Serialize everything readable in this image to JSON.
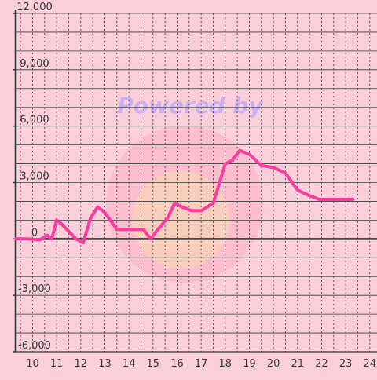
{
  "chart_data": {
    "type": "line",
    "title": "",
    "xlabel": "",
    "ylabel": "",
    "xlim": [
      9.3,
      24.3
    ],
    "ylim": [
      -6000,
      12000
    ],
    "x_ticks": [
      10,
      11,
      12,
      13,
      14,
      15,
      16,
      17,
      18,
      19,
      20,
      21,
      22,
      23,
      24
    ],
    "x_tick_labels": [
      "10",
      "11",
      "12",
      "13",
      "14",
      "15",
      "16",
      "17",
      "18",
      "19",
      "20",
      "21",
      "22",
      "23",
      "24"
    ],
    "y_ticks": [
      -6000,
      -3000,
      0,
      3000,
      6000,
      9000,
      12000
    ],
    "y_tick_labels": [
      "-6,000",
      "-3,000",
      "0",
      "3,000",
      "6,000",
      "9,000",
      "12,000"
    ],
    "y_minor_step": 1000,
    "x_minor_step": 0.5,
    "grid": true,
    "legend": "none",
    "watermark_text": "Powered by",
    "colors": {
      "background": "#fbcfda",
      "line": "#ff3aa0",
      "grid": "#3a3a3a",
      "axis": "#333333",
      "watermark": "#b9a6ff"
    },
    "series": [
      {
        "x": [
          9.3,
          9.8,
          10.3,
          10.6,
          10.8,
          11.0,
          11.2,
          11.5,
          11.8,
          12.1,
          12.4,
          12.7,
          13.0,
          13.5,
          14.0,
          14.6,
          14.9,
          15.2,
          15.6,
          15.9,
          16.2,
          16.6,
          17.0,
          17.5,
          18.0,
          18.3,
          18.6,
          19.0,
          19.5,
          20.0,
          20.5,
          21.0,
          21.5,
          21.9,
          22.5,
          23.3
        ],
        "y": [
          0,
          0,
          -50,
          200,
          0,
          1000,
          800,
          400,
          0,
          -200,
          1100,
          1700,
          1400,
          500,
          500,
          500,
          0,
          500,
          1100,
          1900,
          1700,
          1500,
          1500,
          1900,
          4000,
          4200,
          4700,
          4500,
          3900,
          3800,
          3500,
          2600,
          2300,
          2100,
          2100,
          2100
        ]
      }
    ]
  }
}
